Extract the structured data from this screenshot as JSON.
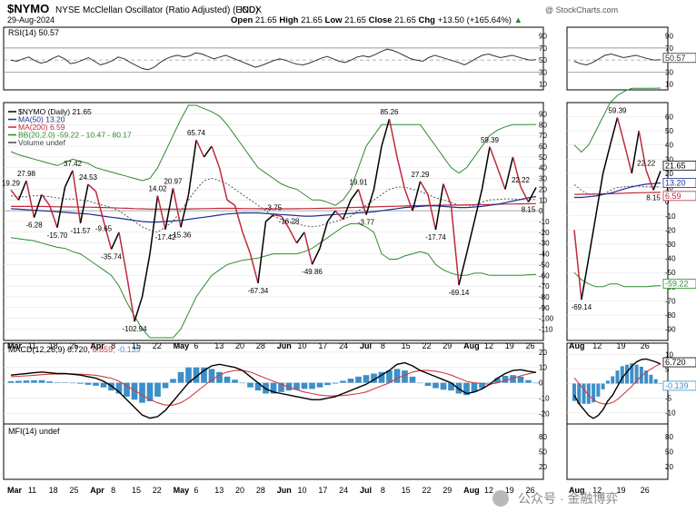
{
  "header": {
    "symbol": "$NYMO",
    "description": "NYSE McClellan Oscillator (Ratio Adjusted) (EOD)",
    "exchange": "INDX",
    "date": "29-Aug-2024",
    "watermark": "@ StockCharts.com",
    "open_label": "Open",
    "open": "21.65",
    "high_label": "High",
    "high": "21.65",
    "low_label": "Low",
    "low": "21.65",
    "close_label": "Close",
    "close": "21.65",
    "chg_label": "Chg",
    "chg": "+13.50 (+165.64%)",
    "chg_arrow": "▲"
  },
  "footer": {
    "wechat_text": "公众号 · 金融博弈"
  },
  "colors": {
    "price_up": "#000000",
    "price_down": "#c0283c",
    "ma50": "#1f2f8f",
    "ma200": "#c0283c",
    "bb": "#2e8b2e",
    "bb_mid": "#555555",
    "rsi": "#333333",
    "macd": "#000000",
    "signal": "#d23c3c",
    "hist": "#3d8fc7"
  },
  "chart_data": [
    {
      "type": "line",
      "panel": "RSI",
      "legend": "RSI(14) 50.57",
      "right_label": "50.57",
      "right_label_zoom": "50.57",
      "y_ticks": [
        "90",
        "70",
        "50",
        "30",
        "10"
      ],
      "y_tick_values": [
        90,
        70,
        50,
        30,
        10
      ],
      "ylim": [
        5,
        100
      ],
      "values": [
        50,
        48,
        52,
        55,
        49,
        45,
        47,
        53,
        57,
        52,
        44,
        46,
        50,
        54,
        48,
        42,
        45,
        49,
        55,
        52,
        46,
        41,
        36,
        34,
        38,
        46,
        52,
        56,
        58,
        55,
        57,
        62,
        60,
        56,
        52,
        55,
        58,
        54,
        50,
        46,
        42,
        38,
        41,
        45,
        49,
        52,
        50,
        46,
        43,
        42,
        45,
        49,
        53,
        56,
        52,
        48,
        46,
        50,
        55,
        57,
        55,
        59,
        64,
        68,
        66,
        62,
        57,
        52,
        50,
        48,
        54,
        58,
        55,
        52,
        49,
        46,
        42,
        47,
        53,
        58,
        60,
        57,
        54,
        56,
        58,
        55,
        52,
        50,
        50.57
      ],
      "zoom_values": [
        48,
        44,
        42,
        46,
        52,
        58,
        60,
        57,
        54,
        56,
        58,
        55,
        52,
        50,
        50.57
      ]
    },
    {
      "type": "line",
      "panel": "Price",
      "legend": [
        "$NYMO (Daily) 21.65",
        "MA(50) 13.20",
        "MA(200) 6.59",
        "BB(20,2.0) -59.22 - 10.47 - 80.17",
        "Volume undef"
      ],
      "right_labels": [
        "21.65",
        "13.20",
        "6.59",
        "-59.22"
      ],
      "y_ticks": [
        "90",
        "80",
        "70",
        "60",
        "50",
        "40",
        "30",
        "20",
        "10",
        "0",
        "-10",
        "-20",
        "-30",
        "-40",
        "-50",
        "-60",
        "-70",
        "-80",
        "-90",
        "-100",
        "-110"
      ],
      "y_tick_values": [
        90,
        80,
        70,
        60,
        50,
        40,
        30,
        20,
        10,
        0,
        -10,
        -20,
        -30,
        -40,
        -50,
        -60,
        -70,
        -80,
        -90,
        -100,
        -110
      ],
      "zoom_y_ticks": [
        "60",
        "50",
        "40",
        "30",
        "20",
        "10",
        "0",
        "-10",
        "-20",
        "-30",
        "-40",
        "-50",
        "-60",
        "-70",
        "-80",
        "-90"
      ],
      "zoom_y_tick_values": [
        60,
        50,
        40,
        30,
        20,
        10,
        0,
        -10,
        -20,
        -30,
        -40,
        -50,
        -60,
        -70,
        -80,
        -90
      ],
      "ylim": [
        -118,
        98
      ],
      "zoom_ylim": [
        -96,
        68
      ],
      "values": [
        19.29,
        10,
        27.98,
        -6.28,
        15,
        5,
        -15.7,
        22,
        37.42,
        -11.57,
        24.53,
        18,
        -9.65,
        -35.74,
        -20,
        -60,
        -102.94,
        -80,
        -40,
        14.02,
        -17.42,
        20.97,
        -15.36,
        15,
        65.74,
        50,
        60,
        40,
        10,
        5,
        -20,
        -40,
        -67.34,
        -10,
        -3.75,
        -5,
        -16.28,
        -30,
        -20,
        -49.86,
        -35,
        -10,
        0,
        -8,
        10,
        19.91,
        -3.77,
        20,
        60,
        85.26,
        50,
        20,
        0,
        27.29,
        15,
        -17.74,
        25,
        5,
        -69.14,
        -40,
        -10,
        20,
        59.39,
        40,
        20,
        50,
        22.22,
        8.15,
        21.65
      ],
      "ma50": [
        2,
        1.5,
        1,
        0.5,
        0,
        -0.5,
        -1,
        -1.5,
        -2,
        -2.5,
        -3,
        -4,
        -5,
        -6,
        -7,
        -8,
        -9,
        -10,
        -10.5,
        -10.5,
        -10,
        -9.5,
        -9,
        -8,
        -7,
        -6,
        -5,
        -4,
        -3,
        -2.5,
        -2,
        -2,
        -2,
        -2.5,
        -3,
        -3.5,
        -4,
        -4.5,
        -5,
        -5,
        -4.5,
        -4,
        -3.5,
        -3,
        -2.5,
        -2,
        -1.5,
        -1,
        0,
        1,
        2,
        3,
        3.5,
        4,
        4.5,
        4.5,
        4,
        3.5,
        3,
        3,
        3.5,
        4,
        5,
        6,
        7.5,
        9,
        10.5,
        12,
        13.2
      ],
      "ma200": [
        4,
        4,
        4,
        4,
        4,
        3.8,
        3.7,
        3.6,
        3.5,
        3.4,
        3.3,
        3.2,
        3,
        2.8,
        2.5,
        2.3,
        2,
        1.8,
        1.6,
        1.5,
        1.5,
        1.5,
        1.6,
        1.7,
        1.8,
        2,
        2.1,
        2.2,
        2.2,
        2.2,
        2.1,
        2,
        1.9,
        1.8,
        1.8,
        1.8,
        1.8,
        1.9,
        2,
        2.1,
        2.2,
        2.3,
        2.5,
        2.7,
        3,
        3.2,
        3.4,
        3.6,
        3.8,
        4,
        4.2,
        4.4,
        4.6,
        4.8,
        5,
        5.1,
        5.2,
        5.3,
        5.3,
        5.4,
        5.5,
        5.6,
        5.8,
        6,
        6.2,
        6.3,
        6.4,
        6.5,
        6.59
      ],
      "bb_upper": [
        55,
        52,
        50,
        48,
        46,
        44,
        42,
        45,
        48,
        46,
        44,
        40,
        38,
        36,
        34,
        32,
        30,
        28,
        30,
        40,
        55,
        70,
        85,
        98,
        98,
        95,
        92,
        88,
        80,
        70,
        60,
        50,
        40,
        35,
        30,
        25,
        22,
        20,
        15,
        10,
        10,
        8,
        5,
        10,
        20,
        40,
        60,
        70,
        80,
        80,
        80,
        80,
        80,
        80,
        70,
        60,
        50,
        40,
        35,
        40,
        50,
        60,
        70,
        75,
        78,
        80,
        80,
        80,
        80.17
      ],
      "bb_mid": [
        14,
        13,
        13,
        14,
        14,
        13,
        12,
        11,
        11,
        10,
        9,
        7,
        5,
        3,
        0,
        -5,
        -10,
        -15,
        -18,
        -20,
        -15,
        -10,
        0,
        10,
        20,
        28,
        30,
        28,
        25,
        20,
        15,
        10,
        5,
        0,
        -5,
        -8,
        -10,
        -12,
        -14,
        -15,
        -14,
        -12,
        -10,
        -8,
        -5,
        0,
        5,
        10,
        15,
        20,
        22,
        22,
        20,
        18,
        15,
        12,
        10,
        8,
        5,
        5,
        5,
        8,
        10,
        10.5,
        11,
        11,
        10.5,
        10.5,
        10.47
      ],
      "bb_lower": [
        -25,
        -26,
        -27,
        -28,
        -30,
        -32,
        -34,
        -35,
        -38,
        -40,
        -45,
        -50,
        -55,
        -60,
        -70,
        -85,
        -98,
        -110,
        -118,
        -118,
        -118,
        -118,
        -110,
        -95,
        -80,
        -70,
        -60,
        -55,
        -50,
        -48,
        -46,
        -45,
        -44,
        -42,
        -40,
        -40,
        -40,
        -40,
        -38,
        -35,
        -30,
        -25,
        -20,
        -15,
        -12,
        -12,
        -15,
        -20,
        -40,
        -45,
        -45,
        -42,
        -40,
        -38,
        -40,
        -50,
        -55,
        -58,
        -60,
        -60,
        -58,
        -58,
        -60,
        -60,
        -60,
        -60,
        -60,
        -59.5,
        -59.22
      ],
      "annotations": [
        {
          "index": 0,
          "text": "19.29",
          "pos": "above"
        },
        {
          "index": 2,
          "text": "27.98",
          "pos": "above"
        },
        {
          "index": 3,
          "text": "-6.28",
          "pos": "below"
        },
        {
          "index": 6,
          "text": "-15.70",
          "pos": "below"
        },
        {
          "index": 8,
          "text": "37.42",
          "pos": "above"
        },
        {
          "index": 9,
          "text": "-11.57",
          "pos": "below"
        },
        {
          "index": 10,
          "text": "24.53",
          "pos": "above"
        },
        {
          "index": 12,
          "text": "-9.65",
          "pos": "below"
        },
        {
          "index": 13,
          "text": "-35.74",
          "pos": "below"
        },
        {
          "index": 16,
          "text": "-102.94",
          "pos": "below"
        },
        {
          "index": 19,
          "text": "14.02",
          "pos": "above"
        },
        {
          "index": 20,
          "text": "-17.42",
          "pos": "below"
        },
        {
          "index": 21,
          "text": "20.97",
          "pos": "above"
        },
        {
          "index": 22,
          "text": "-15.36",
          "pos": "below"
        },
        {
          "index": 24,
          "text": "65.74",
          "pos": "above"
        },
        {
          "index": 32,
          "text": "-67.34",
          "pos": "below"
        },
        {
          "index": 34,
          "text": "-3.75",
          "pos": "above"
        },
        {
          "index": 36,
          "text": "-16.28",
          "pos": "above"
        },
        {
          "index": 39,
          "text": "-49.86",
          "pos": "below"
        },
        {
          "index": 45,
          "text": "19.91",
          "pos": "above"
        },
        {
          "index": 46,
          "text": "-3.77",
          "pos": "below"
        },
        {
          "index": 49,
          "text": "85.26",
          "pos": "above"
        },
        {
          "index": 53,
          "text": "27.29",
          "pos": "above"
        },
        {
          "index": 55,
          "text": "-17.74",
          "pos": "below"
        },
        {
          "index": 58,
          "text": "-69.14",
          "pos": "below"
        },
        {
          "index": 62,
          "text": "59.39",
          "pos": "above"
        },
        {
          "index": 66,
          "text": "22.22",
          "pos": "above"
        },
        {
          "index": 67,
          "text": "8.15",
          "pos": "below"
        }
      ],
      "zoom_values": [
        -20,
        -69.14,
        -40,
        -10,
        20,
        40,
        59.39,
        40,
        20,
        50,
        22.22,
        8.15,
        21.65
      ],
      "zoom_ma50": [
        3,
        3,
        3.5,
        4,
        5,
        6,
        7.5,
        9,
        10.5,
        11.5,
        12.3,
        12.8,
        13.2
      ],
      "zoom_ma200": [
        5.1,
        5.2,
        5.3,
        5.4,
        5.5,
        5.6,
        5.8,
        6,
        6.2,
        6.3,
        6.4,
        6.5,
        6.59
      ],
      "zoom_bb_upper": [
        40,
        35,
        40,
        50,
        60,
        70,
        75,
        78,
        80,
        80,
        80,
        80,
        80.17
      ],
      "zoom_bb_mid": [
        12,
        8,
        5,
        5,
        5,
        8,
        10,
        10.5,
        11,
        11,
        10.5,
        10.5,
        10.47
      ],
      "zoom_bb_lower": [
        -50,
        -55,
        -58,
        -60,
        -60,
        -58,
        -58,
        -60,
        -60,
        -60,
        -60,
        -59.5,
        -59.22
      ],
      "zoom_annotations": [
        {
          "index": 1,
          "text": "-69.14",
          "pos": "below"
        },
        {
          "index": 6,
          "text": "59.39",
          "pos": "above"
        },
        {
          "index": 10,
          "text": "22.22",
          "pos": "above"
        },
        {
          "index": 11,
          "text": "8.15",
          "pos": "below"
        }
      ]
    },
    {
      "type": "bar",
      "panel": "MACD",
      "legend_parts": [
        "MACD(12,26,9) 6.720, ",
        "6.859",
        ", -0.139"
      ],
      "right_labels": [
        "6.720",
        "-0.139"
      ],
      "y_ticks": [
        "20",
        "10",
        "0",
        "-10",
        "-20"
      ],
      "y_tick_values": [
        20,
        10,
        0,
        -10,
        -20
      ],
      "zoom_y_ticks": [
        "10",
        "5",
        "0",
        "-5",
        "-10"
      ],
      "zoom_y_tick_values": [
        10,
        5,
        0,
        -5,
        -10
      ],
      "ylim": [
        -25,
        24
      ],
      "zoom_ylim": [
        -13,
        13
      ],
      "macd": [
        5,
        5.5,
        6,
        6.5,
        7,
        6.5,
        6,
        6,
        5.5,
        5,
        4,
        3,
        1,
        -2,
        -6,
        -11,
        -16,
        -21,
        -23,
        -22,
        -18,
        -12,
        -6,
        0,
        4,
        8,
        11,
        12,
        11,
        10,
        8,
        4,
        0,
        -4,
        -6,
        -7,
        -8,
        -9,
        -10,
        -11,
        -11,
        -10,
        -9,
        -7,
        -5,
        -3,
        -1,
        2,
        5,
        8,
        12,
        13,
        11,
        8,
        6,
        4,
        2,
        0,
        -4,
        -7,
        -6,
        -4,
        -1,
        3,
        6,
        8,
        8.5,
        7.5,
        6.72
      ],
      "signal": [
        4,
        4.2,
        4.5,
        4.9,
        5.3,
        5.6,
        5.7,
        5.8,
        5.8,
        5.6,
        5.3,
        4.9,
        4,
        3,
        1,
        -2,
        -5,
        -8,
        -11,
        -13,
        -14.5,
        -14.5,
        -13,
        -10,
        -6,
        -2,
        2,
        5,
        7,
        8,
        8,
        7,
        5,
        3,
        1,
        -1,
        -3,
        -4.5,
        -6,
        -7,
        -8,
        -8.5,
        -8.5,
        -8.3,
        -7.7,
        -7,
        -6,
        -4,
        -2,
        0,
        3,
        5,
        7,
        8,
        8,
        7.5,
        6.5,
        5,
        3,
        1,
        0,
        -0.5,
        -1,
        0,
        1.5,
        3,
        4.5,
        5.8,
        6.859
      ],
      "zoom_macd": [
        -4,
        -7,
        -9,
        -11,
        -12,
        -11,
        -9,
        -6,
        -4,
        -1,
        2,
        4,
        6,
        7.5,
        8.3,
        8.5,
        8,
        7.5,
        6.72
      ],
      "zoom_signal": [
        2,
        0,
        -2,
        -4,
        -5.5,
        -6.5,
        -7,
        -7,
        -6.5,
        -5.5,
        -4,
        -2.5,
        -1,
        1,
        2.5,
        4,
        5,
        6,
        6.859
      ]
    },
    {
      "type": "line",
      "panel": "MFI",
      "legend": "MFI(14) undef",
      "y_ticks": [
        "80",
        "50",
        "20"
      ],
      "y_tick_values": [
        80,
        50,
        20
      ],
      "ylim": [
        0,
        100
      ]
    }
  ],
  "x_axis": {
    "labels": [
      "Mar",
      "11",
      "18",
      "25",
      "Apr",
      "8",
      "15",
      "22",
      "May",
      "6",
      "13",
      "20",
      "28",
      "Jun",
      "10",
      "17",
      "24",
      "Jul",
      "8",
      "15",
      "22",
      "29",
      "Aug",
      "12",
      "19",
      "26"
    ],
    "bold": [
      "Mar",
      "Apr",
      "May",
      "Jun",
      "Jul",
      "Aug"
    ],
    "zoom_labels": [
      "Aug",
      "12",
      "19",
      "26"
    ]
  }
}
